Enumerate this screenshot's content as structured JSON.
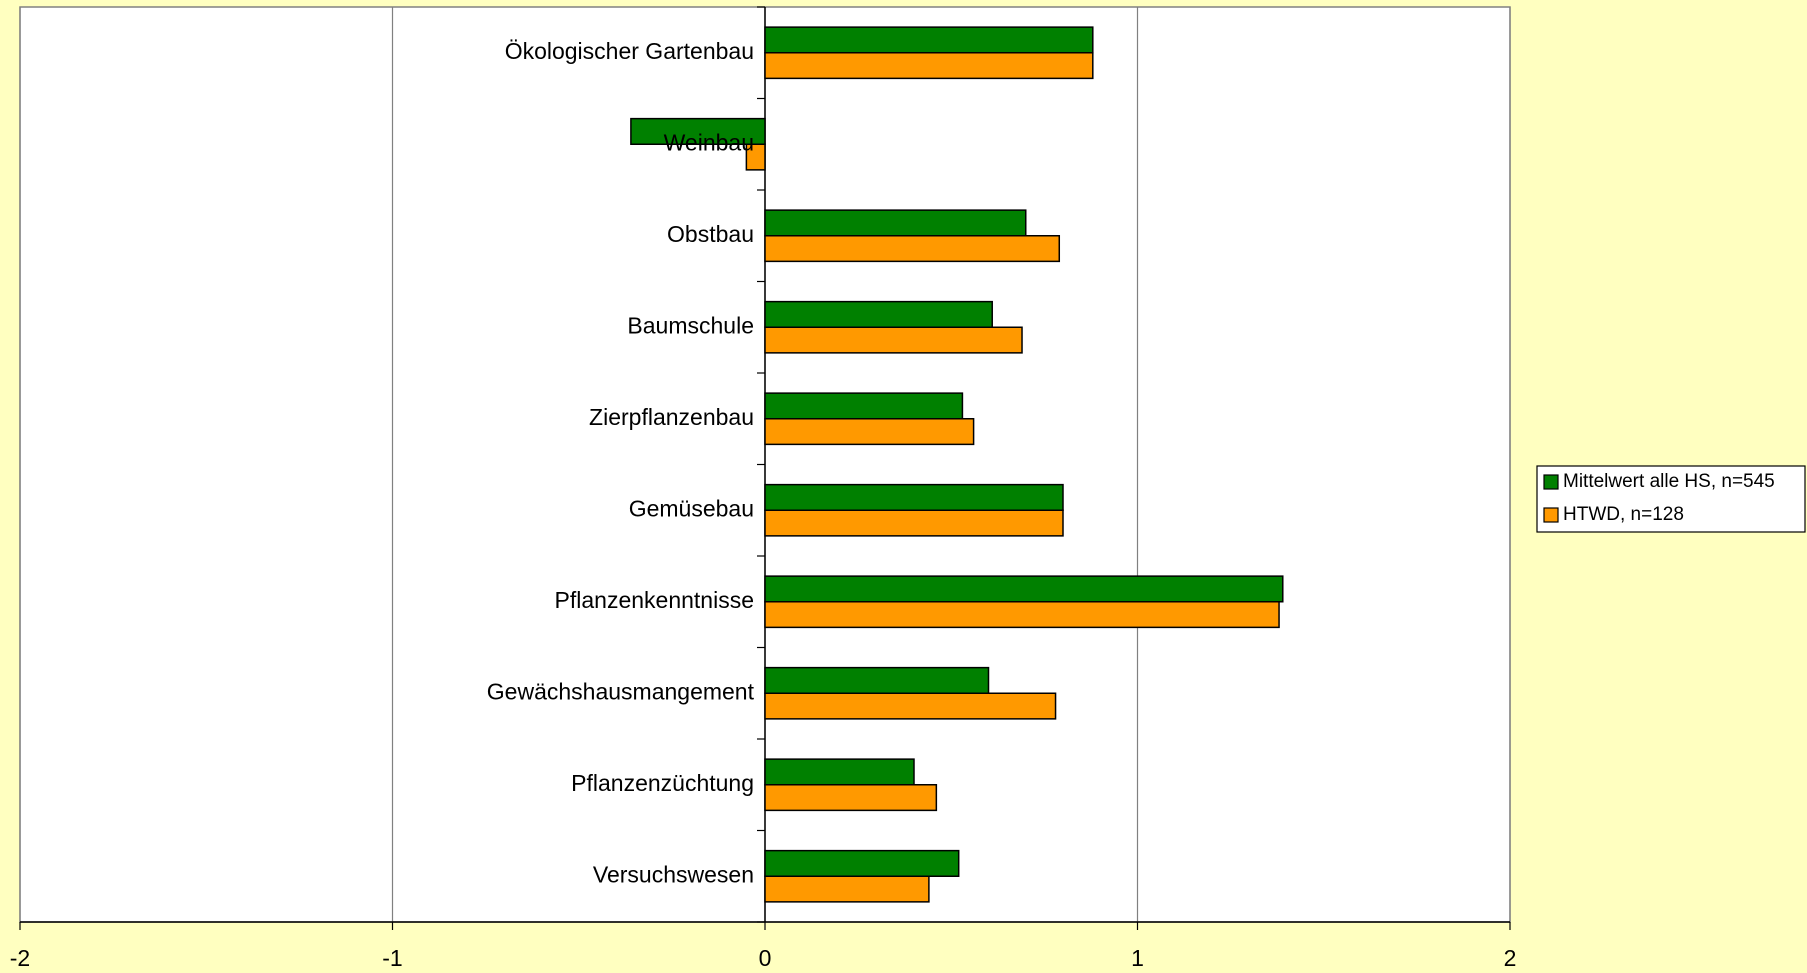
{
  "chart_data": {
    "type": "hbar",
    "categories": [
      "Ökologischer Gartenbau",
      "Weinbau",
      "Obstbau",
      "Baumschule",
      "Zierpflanzenbau",
      "Gemüsebau",
      "Pflanzenkenntnisse",
      "Gewächshausmangement",
      "Pflanzenzüchtung",
      "Versuchswesen"
    ],
    "series": [
      {
        "name": "Mittelwert alle HS, n=545",
        "color": "#008000",
        "values": [
          0.88,
          -0.36,
          0.7,
          0.61,
          0.53,
          0.8,
          1.39,
          0.6,
          0.4,
          0.52
        ]
      },
      {
        "name": "HTWD, n=128",
        "color": "#ff9900",
        "values": [
          0.88,
          -0.05,
          0.79,
          0.69,
          0.56,
          0.8,
          1.38,
          0.78,
          0.46,
          0.44
        ]
      }
    ],
    "xlim": [
      -2,
      2
    ],
    "xticks": [
      -2,
      -1,
      0,
      1,
      2
    ],
    "grid": true,
    "legend": "right"
  }
}
